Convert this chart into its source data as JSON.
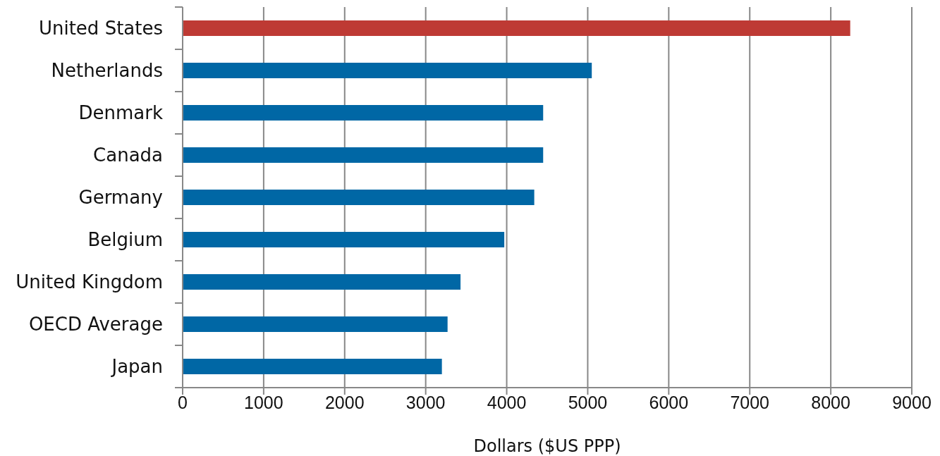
{
  "chart_data": {
    "type": "bar",
    "orientation": "horizontal",
    "categories": [
      "United States",
      "Netherlands",
      "Denmark",
      "Canada",
      "Germany",
      "Belgium",
      "United Kingdom",
      "OECD Average",
      "Japan"
    ],
    "values": [
      8240,
      5050,
      4450,
      4450,
      4340,
      3970,
      3430,
      3270,
      3200
    ],
    "colors": [
      "#be3a34",
      "#0067a5",
      "#0067a5",
      "#0067a5",
      "#0067a5",
      "#0067a5",
      "#0067a5",
      "#0067a5",
      "#0067a5"
    ],
    "xlabel": "Dollars ($US PPP)",
    "xlim": [
      0,
      9000
    ],
    "xticks": [
      0,
      1000,
      2000,
      3000,
      4000,
      5000,
      6000,
      7000,
      8000,
      9000
    ],
    "grid": "x"
  }
}
